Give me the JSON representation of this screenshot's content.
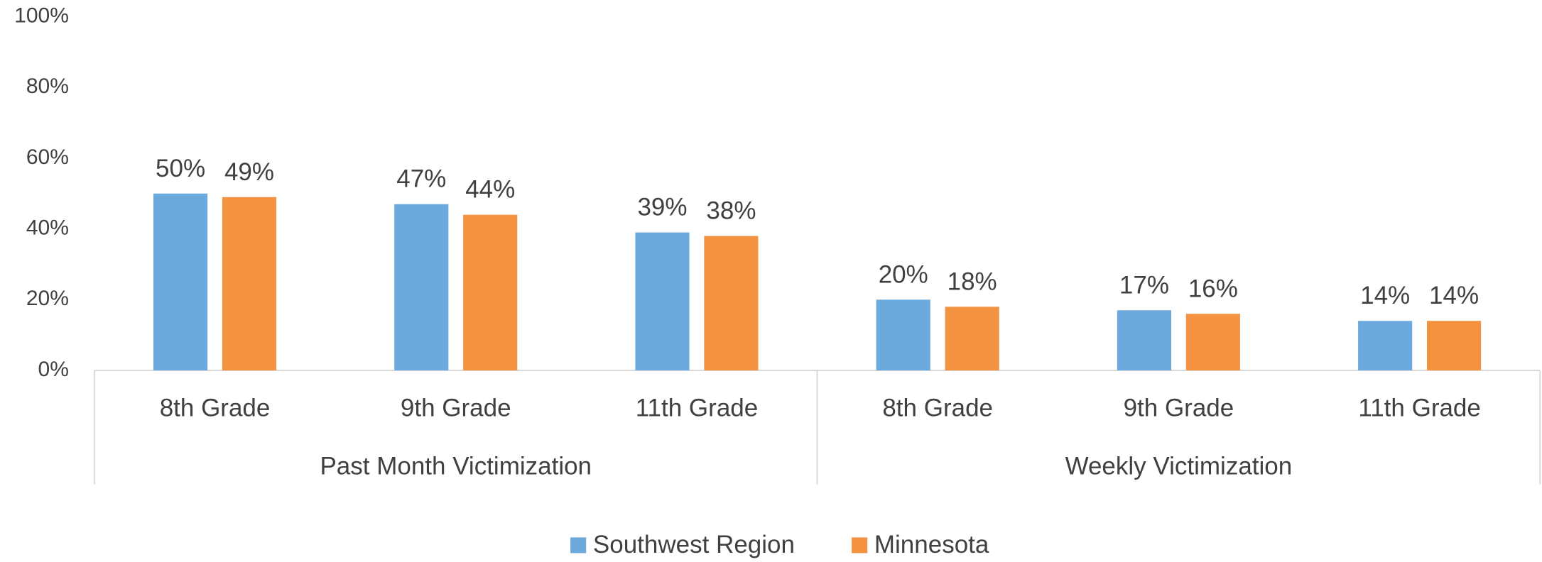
{
  "chart_data": {
    "type": "bar",
    "categories": [
      "8th Grade",
      "9th Grade",
      "11th Grade",
      "8th Grade",
      "9th Grade",
      "11th Grade"
    ],
    "category_groups": [
      "Past Month Victimization",
      "Weekly Victimization"
    ],
    "series": [
      {
        "name": "Southwest Region",
        "color": "#6CAADD",
        "values": [
          50,
          47,
          39,
          20,
          17,
          14
        ],
        "value_labels": [
          "50%",
          "47%",
          "39%",
          "20%",
          "17%",
          "14%"
        ]
      },
      {
        "name": "Minnesota",
        "color": "#F39342",
        "values": [
          49,
          44,
          38,
          18,
          16,
          14
        ],
        "value_labels": [
          "49%",
          "44%",
          "38%",
          "18%",
          "16%",
          "14%"
        ]
      }
    ],
    "ylim": [
      0,
      100
    ],
    "yticks": [
      {
        "value": 0,
        "label": "0%"
      },
      {
        "value": 20,
        "label": "20%"
      },
      {
        "value": 40,
        "label": "40%"
      },
      {
        "value": 60,
        "label": "60%"
      },
      {
        "value": 80,
        "label": "80%"
      },
      {
        "value": 100,
        "label": "100%"
      }
    ],
    "grid": false,
    "legend": "bottom"
  }
}
